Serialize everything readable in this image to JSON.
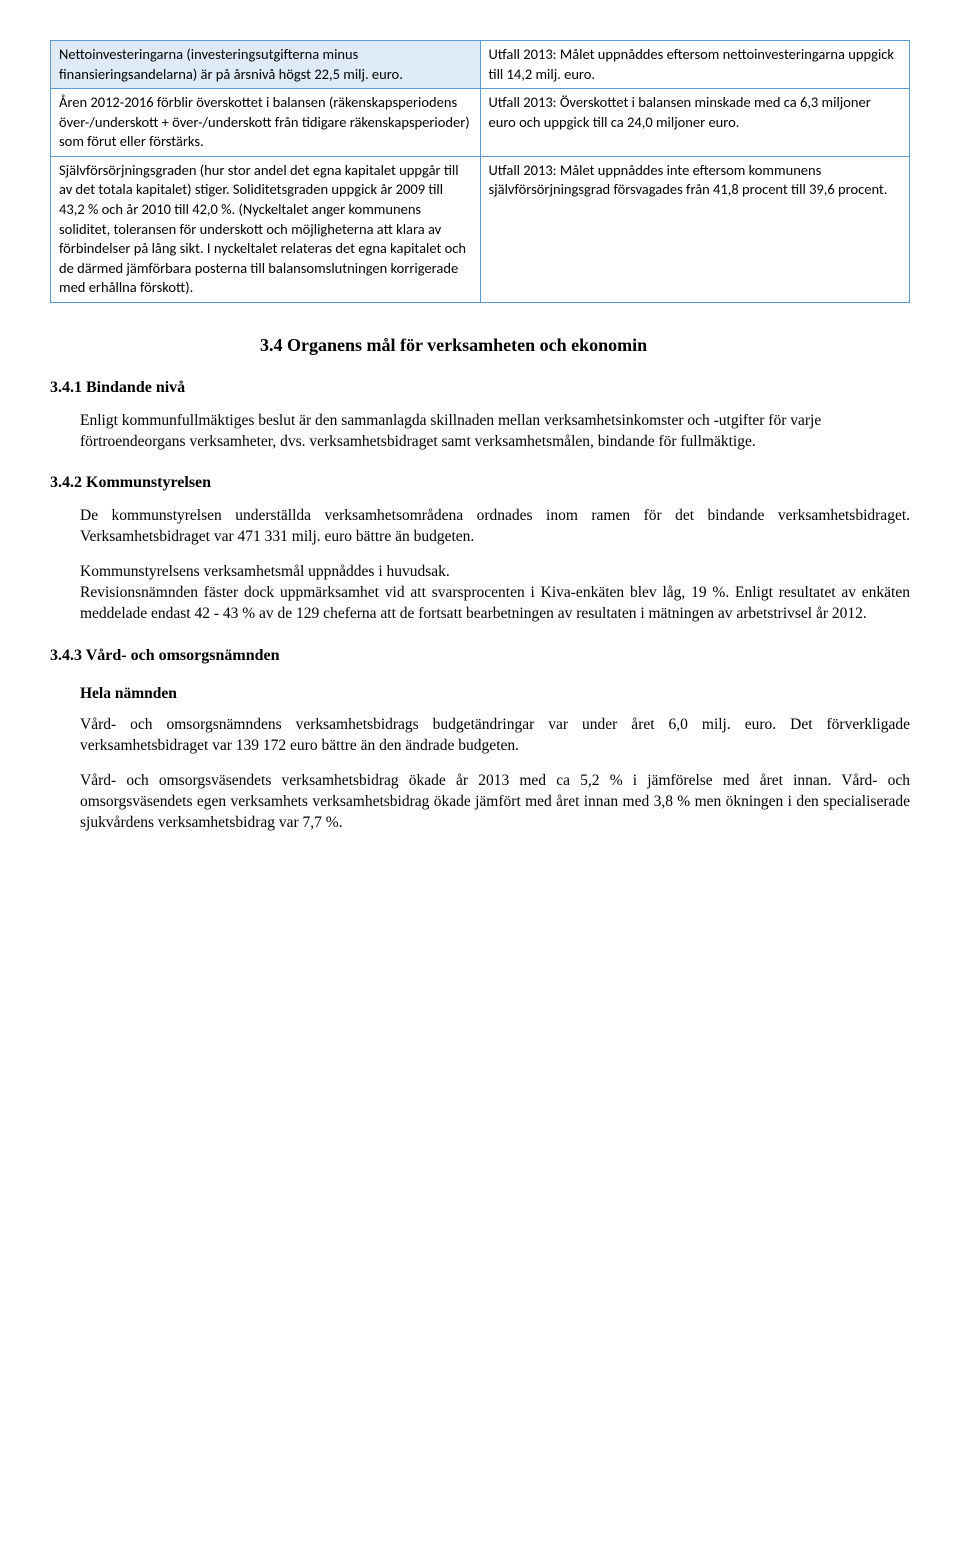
{
  "table": {
    "rows": [
      {
        "left_shaded": true,
        "left": "Nettoinvesteringarna (investeringsutgifterna minus finansieringsandelarna) är på årsnivå högst 22,5 milj. euro.",
        "right": "Utfall 2013: Målet uppnåddes eftersom nettoinvesteringarna uppgick till 14,2 milj. euro."
      },
      {
        "left_shaded": false,
        "left": "Åren 2012-2016 förblir överskottet i balansen (räkenskapsperiodens över-/underskott + över-/underskott från tidigare räkenskapsperioder) som förut eller förstärks.",
        "right": "Utfall 2013: Överskottet i balansen minskade med ca 6,3 miljoner euro och uppgick till ca 24,0 miljoner euro."
      },
      {
        "left_shaded": false,
        "left": "Självförsörjningsgraden (hur stor andel det egna kapitalet uppgår till av det totala kapitalet) stiger. Soliditetsgraden uppgick år 2009 till 43,2 % och år 2010 till 42,0 %. (Nyckeltalet anger kommunens soliditet, toleransen för underskott och möjligheterna att klara av förbindelser på lång sikt. I nyckeltalet relateras det egna kapitalet och de därmed jämförbara posterna till balansomslutningen korrigerade med erhållna förskott).",
        "right": "Utfall 2013: Målet uppnåddes inte eftersom kommunens självförsörjningsgrad försvagades från 41,8 procent till 39,6 procent."
      }
    ]
  },
  "section_3_4": "3.4  Organens mål för verksamheten och ekonomin",
  "sub_3_4_1": {
    "heading": "3.4.1   Bindande nivå",
    "p1": "Enligt kommunfullmäktiges beslut är den sammanlagda skillnaden mellan verksamhetsinkomster och -utgifter för varje förtroendeorgans verksamheter, dvs. verksamhetsbidraget samt verksamhetsmålen, bindande för fullmäktige."
  },
  "sub_3_4_2": {
    "heading": "3.4.2   Kommunstyrelsen",
    "p1": "De kommunstyrelsen underställda verksamhetsområdena ordnades inom ramen för det bindande verksamhetsbidraget. Verksamhetsbidraget var 471 331 milj. euro bättre än budgeten.",
    "p2": "Kommunstyrelsens verksamhetsmål uppnåddes i huvudsak.",
    "p3": "Revisionsnämnden fäster dock uppmärksamhet vid att svarsprocenten i Kiva-enkäten blev låg, 19 %. Enligt resultatet av enkäten meddelade endast 42 - 43 % av de 129 cheferna att de fortsatt bearbetningen av resultaten i mätningen av arbetstrivsel år 2012."
  },
  "sub_3_4_3": {
    "heading": "3.4.3   Vård- och omsorgsnämnden",
    "sub_heading": "Hela nämnden",
    "p1": "Vård- och omsorgsnämndens verksamhetsbidrags budgetändringar var under året 6,0 milj. euro. Det förverkligade verksamhetsbidraget var 139 172 euro bättre än den ändrade budgeten.",
    "p2": "Vård- och omsorgsväsendets verksamhetsbidrag ökade år 2013 med ca 5,2 % i jämförelse med året innan. Vård- och omsorgsväsendets egen verksamhets verksamhetsbidrag ökade jämfört med året innan med 3,8 % men ökningen i den specialiserade sjukvårdens verksamhetsbidrag var 7,7 %."
  }
}
